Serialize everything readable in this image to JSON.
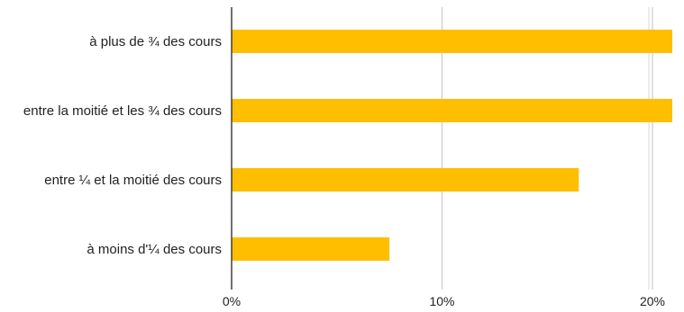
{
  "chart_data": {
    "type": "bar",
    "orientation": "horizontal",
    "categories": [
      "à plus de ¾ des cours",
      "entre la moitié et les ¾ des cours",
      "entre ¼ et  la moitié des cours",
      "à moins d'¼ des cours"
    ],
    "values": [
      21.5,
      21.5,
      16.5,
      7.5
    ],
    "xlim": [
      0,
      21
    ],
    "x_ticks": [
      0,
      10,
      20
    ],
    "x_tick_labels": [
      "0%",
      "10%",
      "20%"
    ],
    "grid": true,
    "legend": "none",
    "bar_color": "#FFBE00",
    "grid_color": "#cccccc",
    "axis_color": "#333333"
  }
}
